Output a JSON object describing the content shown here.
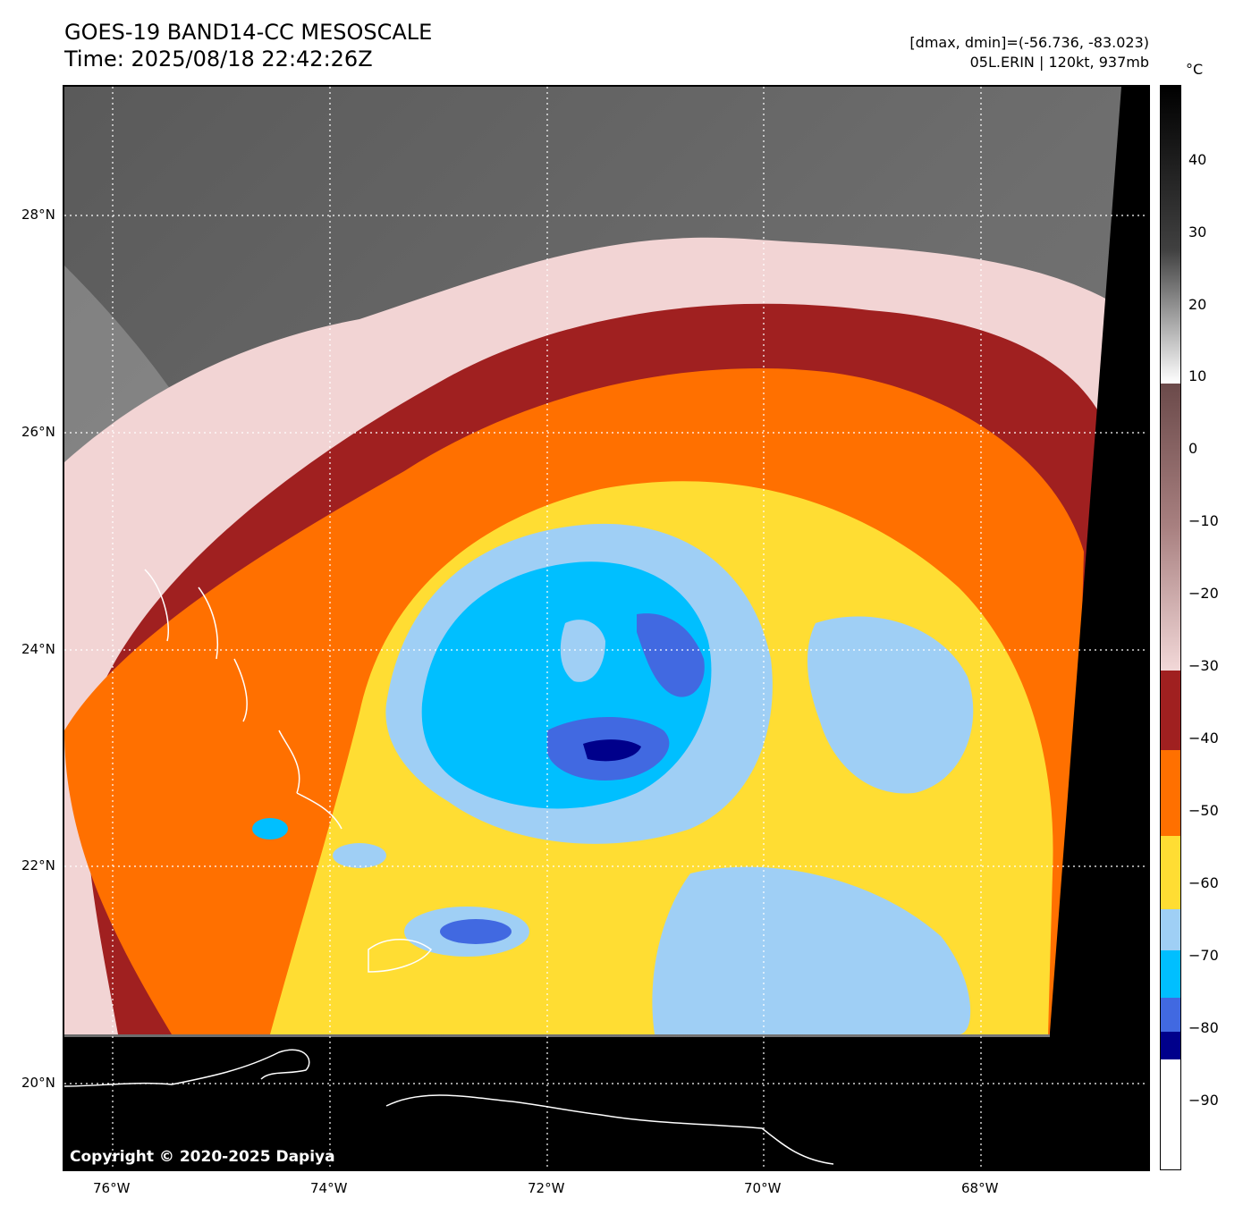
{
  "header": {
    "title_line1": "GOES-19 BAND14-CC MESOSCALE",
    "title_line2": "Time: 2025/08/18 22:42:26Z",
    "info_line1": "[dmax, dmin]=(-56.736, -83.023)",
    "info_line2": "05L.ERIN | 120kt, 937mb"
  },
  "map": {
    "lat_labels": [
      "28°N",
      "26°N",
      "24°N",
      "22°N",
      "20°N"
    ],
    "lon_labels": [
      "76°W",
      "74°W",
      "72°W",
      "70°W",
      "68°W"
    ],
    "copyright": "Copyright © 2020-2025 Dapiya",
    "storm_name": "05L.ERIN",
    "intensity": "120kt, 937mb",
    "cold_cloud_top_min_c": -83.023,
    "cold_cloud_top_max_c": -56.736
  },
  "colorbar": {
    "unit": "°C",
    "tick_labels": [
      "40",
      "30",
      "20",
      "10",
      "0",
      "−10",
      "−20",
      "−30",
      "−40",
      "−50",
      "−60",
      "−70",
      "−80",
      "−90"
    ],
    "colors": {
      "dark_blue": "#00008b",
      "blue": "#4169e1",
      "cyan": "#00bfff",
      "light_blue": "#9fcff5",
      "yellow": "#ffdd33",
      "orange": "#ff7000",
      "dark_red": "#a02020",
      "pink": "#f2d4d4",
      "gray": "#6e6e6e",
      "black": "#000000"
    }
  }
}
